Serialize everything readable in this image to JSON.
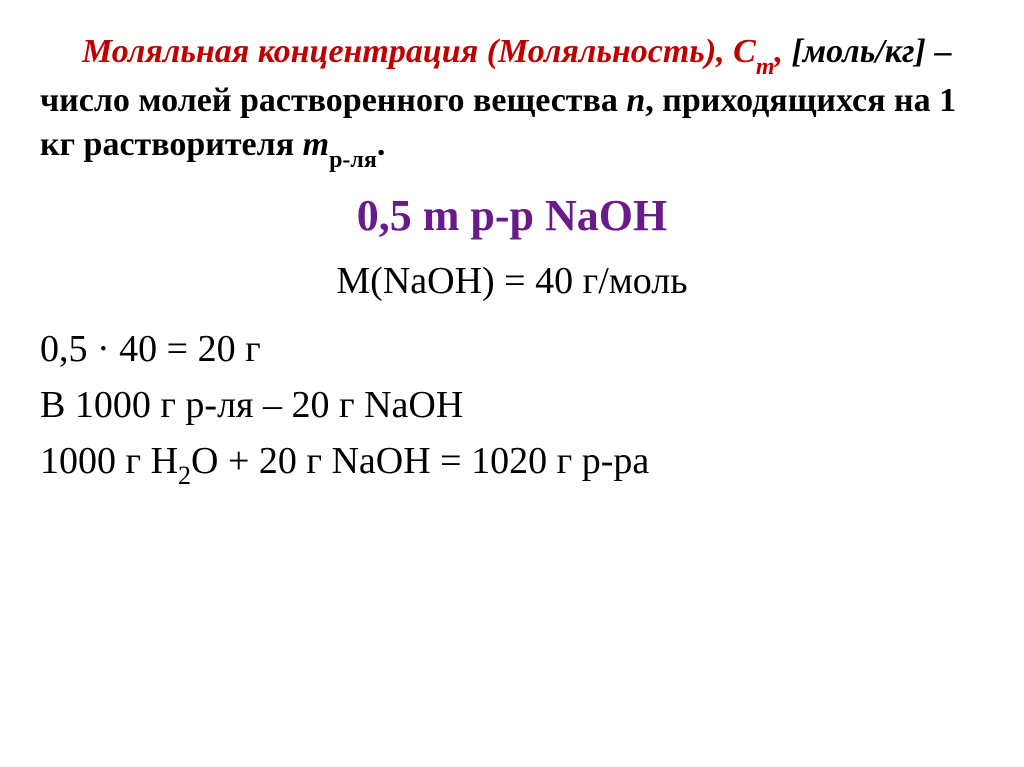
{
  "colors": {
    "red": "#c00000",
    "purple": "#6a1b8a",
    "black": "#000000",
    "background": "#ffffff"
  },
  "typography": {
    "title_fontsize": 34,
    "center_fontsize": 44,
    "molar_fontsize": 38,
    "body_fontsize": 38,
    "font_family": "Times New Roman"
  },
  "title": {
    "red_part": "Моляльная концентрация (Моляльность), С",
    "sub_m": "m",
    "comma": ",",
    "unit": " [моль/кг]",
    "dash_text": " – число молей растворенного вещества ",
    "n": "n",
    "after_n": ", приходящихся на ",
    "one_kg": "1 кг",
    "solvent_text": "  растворителя  ",
    "m_solvent": "m",
    "solvent_sub": "р-ля",
    "period": "."
  },
  "example_line": "0,5 m  р-р  NaOH",
  "molar_mass_line": "M(NaOH) = 40 г/моль",
  "calc_line": "0,5 · 40 = 20 г",
  "proportion_line": "В 1000 г  р-ля  –  20 г  NaOH",
  "sum_line_parts": {
    "p1": "1000 г H",
    "sub": "2",
    "p2": "O + 20 г NaOH = 1020 г р-ра"
  }
}
